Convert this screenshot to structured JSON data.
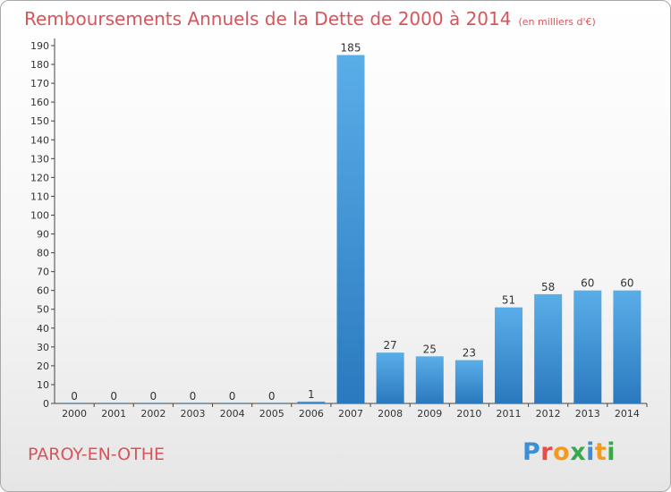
{
  "title": "Remboursements Annuels de la Dette de 2000 à 2014",
  "unit": "(en milliers d'€)",
  "commune": "PAROY-EN-OTHE",
  "logo": {
    "text": "Proxiti",
    "colors": [
      "#3b8fd6",
      "#e84b4b",
      "#f39a1f",
      "#3aa84a",
      "#3b8fd6",
      "#f39a1f",
      "#3aa84a"
    ]
  },
  "chart_data": {
    "type": "bar",
    "categories": [
      "2000",
      "2001",
      "2002",
      "2003",
      "2004",
      "2005",
      "2006",
      "2007",
      "2008",
      "2009",
      "2010",
      "2011",
      "2012",
      "2013",
      "2014"
    ],
    "values": [
      0,
      0,
      0,
      0,
      0,
      0,
      1,
      185,
      27,
      25,
      23,
      51,
      58,
      60,
      60
    ],
    "ylim": [
      0,
      190
    ],
    "yticks": [
      0,
      10,
      20,
      30,
      40,
      50,
      60,
      70,
      80,
      90,
      100,
      110,
      120,
      130,
      140,
      150,
      160,
      170,
      180,
      190
    ],
    "grid": false,
    "colors": {
      "bar_light": "#5aaee8",
      "bar_dark": "#2a79bf",
      "title": "#d7555a",
      "axis": "#444444"
    }
  }
}
